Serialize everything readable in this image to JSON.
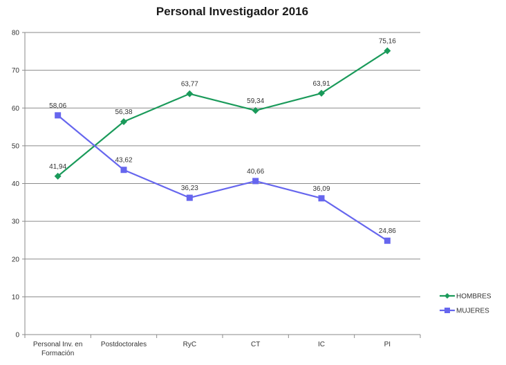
{
  "chart_data": {
    "type": "line",
    "title": "Personal Investigador 2016",
    "xlabel": "",
    "ylabel": "",
    "categories": [
      [
        "Personal Inv. en",
        "Formación"
      ],
      [
        "Postdoctorales"
      ],
      [
        "RyC"
      ],
      [
        "CT"
      ],
      [
        "IC"
      ],
      [
        "PI"
      ]
    ],
    "ylim": [
      0,
      80
    ],
    "yticks": [
      0,
      10,
      20,
      30,
      40,
      50,
      60,
      70,
      80
    ],
    "grid": true,
    "legend": "right",
    "series": [
      {
        "name": "HOMBRES",
        "color": "#1a9a5a",
        "marker": "diamond",
        "values": [
          41.94,
          56.38,
          63.77,
          59.34,
          63.91,
          75.16
        ],
        "labels": [
          "41,94",
          "56,38",
          "63,77",
          "59,34",
          "63,91",
          "75,16"
        ]
      },
      {
        "name": "MUJERES",
        "color": "#6666ee",
        "marker": "square",
        "values": [
          58.06,
          43.62,
          36.23,
          40.66,
          36.09,
          24.86
        ],
        "labels": [
          "58,06",
          "43,62",
          "36,23",
          "40,66",
          "36,09",
          "24,86"
        ]
      }
    ]
  }
}
